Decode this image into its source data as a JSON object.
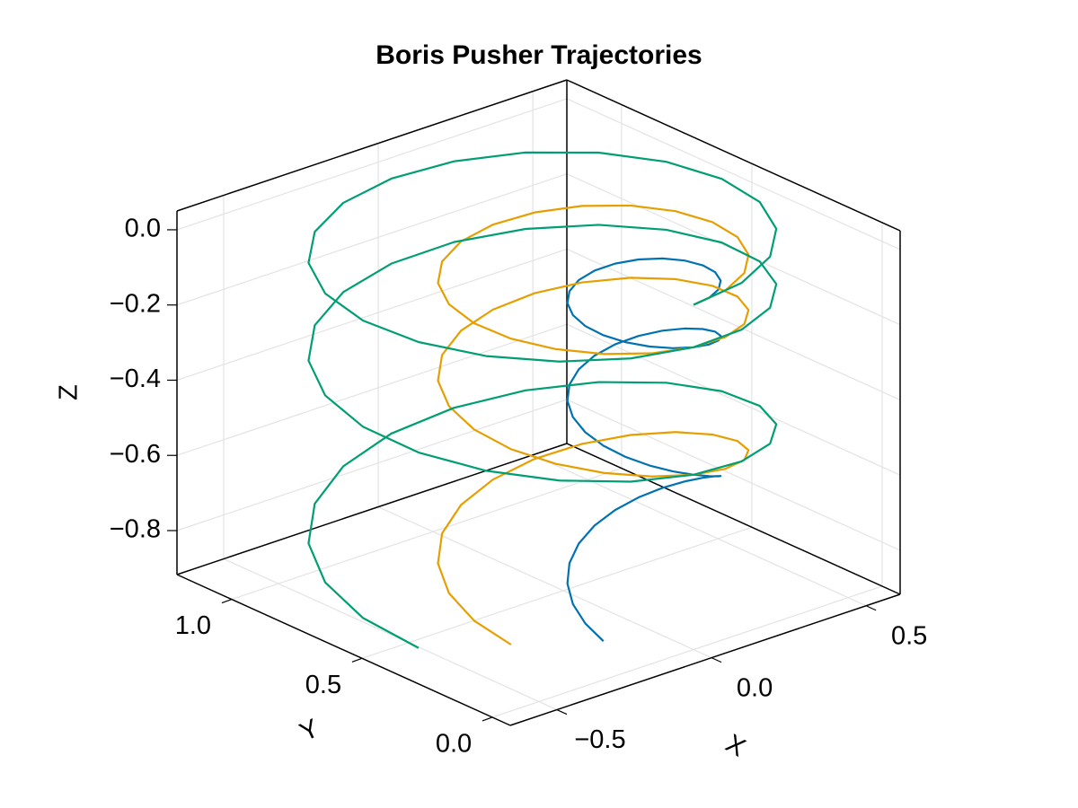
{
  "chart_data": {
    "type": "line3d",
    "title": "Boris Pusher Trajectories",
    "xlabel": "X",
    "ylabel": "Y",
    "zlabel": "Z",
    "xlim": [
      -0.651,
      0.61
    ],
    "ylim": [
      -0.069,
      1.21
    ],
    "zlim": [
      -0.917,
      0.05
    ],
    "xticks": [
      {
        "value": -0.5,
        "label": "−0.5"
      },
      {
        "value": 0,
        "label": "0.0"
      },
      0.5
    ],
    "yticks": [
      {
        "value": 0,
        "label": "0.0"
      },
      0.5,
      {
        "value": 1,
        "label": "1.0"
      }
    ],
    "zticks": [
      {
        "value": -0.8,
        "label": "−0.8"
      },
      {
        "value": -0.6,
        "label": "−0.6"
      },
      {
        "value": -0.4,
        "label": "−0.4"
      },
      {
        "value": -0.2,
        "label": "−0.2"
      },
      {
        "value": 0,
        "label": "0.0"
      }
    ],
    "grid": true,
    "series": [
      {
        "color": "#0072b2",
        "x": [
          0,
          0.0587,
          0.1117,
          0.1537,
          0.1807,
          0.19,
          0.1807,
          0.1537,
          0.1117,
          0.0587,
          0,
          -0.0587,
          -0.1117,
          -0.1537,
          -0.1807,
          -0.19,
          -0.1807,
          -0.1537,
          -0.1117,
          -0.0587,
          0,
          0.0587,
          0.1117,
          0.1537,
          0.1807,
          0.19,
          0.1807,
          0.1537,
          0.1117,
          0.0587,
          0,
          -0.0587,
          -0.1117,
          -0.1537,
          -0.1807,
          -0.19,
          -0.1807,
          -0.1537,
          -0.1117,
          -0.0587,
          0,
          0.0587,
          0.1117,
          0.1537,
          0.1807,
          0.19,
          0.1807,
          0.1537,
          0.1117,
          0.0587,
          0,
          -0.0587,
          -0.1117,
          -0.1537,
          -0.1807,
          -0.19,
          -0.1807
        ],
        "y": [
          0,
          0.0093,
          0.0363,
          0.0783,
          0.1313,
          0.19,
          0.2487,
          0.3017,
          0.3437,
          0.3707,
          0.38,
          0.3707,
          0.3437,
          0.3017,
          0.2487,
          0.19,
          0.1313,
          0.0783,
          0.0363,
          0.0093,
          0,
          0.0093,
          0.0363,
          0.0783,
          0.1313,
          0.19,
          0.2487,
          0.3017,
          0.3437,
          0.3707,
          0.38,
          0.3707,
          0.3437,
          0.3017,
          0.2487,
          0.19,
          0.1313,
          0.0783,
          0.0363,
          0.0093,
          0,
          0.0093,
          0.0363,
          0.0783,
          0.1313,
          0.19,
          0.2487,
          0.3017,
          0.3437,
          0.3707,
          0.38,
          0.3707,
          0.3437,
          0.3017,
          0.2487,
          0.19,
          0.1313
        ],
        "z": [
          0,
          -0.0003,
          -0.0011,
          -0.0025,
          -0.0045,
          -0.0071,
          -0.0102,
          -0.0138,
          -0.0181,
          -0.0229,
          -0.0283,
          -0.0342,
          -0.0407,
          -0.0477,
          -0.0554,
          -0.0636,
          -0.0723,
          -0.0816,
          -0.0915,
          -0.102,
          -0.113,
          -0.1246,
          -0.1367,
          -0.1494,
          -0.1627,
          -0.1766,
          -0.191,
          -0.2059,
          -0.2215,
          -0.2376,
          -0.2543,
          -0.2715,
          -0.2893,
          -0.3076,
          -0.3266,
          -0.3461,
          -0.3661,
          -0.3867,
          -0.4079,
          -0.4297,
          -0.452,
          -0.4749,
          -0.4983,
          -0.5223,
          -0.5469,
          -0.5721,
          -0.5978,
          -0.624,
          -0.6509,
          -0.6783,
          -0.7063,
          -0.7348,
          -0.7639,
          -0.7935,
          -0.8238,
          -0.8546,
          -0.8859
        ]
      },
      {
        "color": "#e69f00",
        "x": [
          0,
          0.119,
          0.2263,
          0.3115,
          0.3662,
          0.385,
          0.3662,
          0.3115,
          0.2263,
          0.119,
          0,
          -0.119,
          -0.2263,
          -0.3115,
          -0.3662,
          -0.385,
          -0.3662,
          -0.3115,
          -0.2263,
          -0.119,
          0,
          0.119,
          0.2263,
          0.3115,
          0.3662,
          0.385,
          0.3662,
          0.3115,
          0.2263,
          0.119,
          0,
          -0.119,
          -0.2263,
          -0.3115,
          -0.3662,
          -0.385,
          -0.3662,
          -0.3115,
          -0.2263,
          -0.119,
          0,
          0.119,
          0.2263,
          0.3115,
          0.3662,
          0.385,
          0.3662,
          0.3115,
          0.2263,
          0.119,
          0,
          -0.119,
          -0.2263,
          -0.3115,
          -0.3662,
          -0.385,
          -0.3662
        ],
        "y": [
          0,
          0.0188,
          0.0735,
          0.1587,
          0.266,
          0.385,
          0.504,
          0.6113,
          0.6965,
          0.7512,
          0.77,
          0.7512,
          0.6965,
          0.6113,
          0.504,
          0.385,
          0.266,
          0.1587,
          0.0735,
          0.0188,
          0,
          0.0188,
          0.0735,
          0.1587,
          0.266,
          0.385,
          0.504,
          0.6113,
          0.6965,
          0.7512,
          0.77,
          0.7512,
          0.6965,
          0.6113,
          0.504,
          0.385,
          0.266,
          0.1587,
          0.0735,
          0.0188,
          0,
          0.0188,
          0.0735,
          0.1587,
          0.266,
          0.385,
          0.504,
          0.6113,
          0.6965,
          0.7512,
          0.77,
          0.7512,
          0.6965,
          0.6113,
          0.504,
          0.385,
          0.266
        ],
        "z": [
          0,
          -0.0003,
          -0.0011,
          -0.0025,
          -0.0045,
          -0.0071,
          -0.0102,
          -0.0138,
          -0.0181,
          -0.0229,
          -0.0283,
          -0.0342,
          -0.0407,
          -0.0477,
          -0.0554,
          -0.0636,
          -0.0723,
          -0.0816,
          -0.0915,
          -0.102,
          -0.113,
          -0.1246,
          -0.1367,
          -0.1494,
          -0.1627,
          -0.1766,
          -0.191,
          -0.2059,
          -0.2215,
          -0.2376,
          -0.2543,
          -0.2715,
          -0.2893,
          -0.3076,
          -0.3266,
          -0.3461,
          -0.3661,
          -0.3867,
          -0.4079,
          -0.4297,
          -0.452,
          -0.4749,
          -0.4983,
          -0.5223,
          -0.5469,
          -0.5721,
          -0.5978,
          -0.624,
          -0.6509,
          -0.6783,
          -0.7063,
          -0.7348,
          -0.7639,
          -0.7935,
          -0.8238,
          -0.8546,
          -0.8859
        ]
      },
      {
        "color": "#009e73",
        "x": [
          0,
          0.1792,
          0.3409,
          0.4692,
          0.5516,
          0.58,
          0.5516,
          0.4692,
          0.3409,
          0.1792,
          0,
          -0.1792,
          -0.3409,
          -0.4692,
          -0.5516,
          -0.58,
          -0.5516,
          -0.4692,
          -0.3409,
          -0.1792,
          0,
          0.1792,
          0.3409,
          0.4692,
          0.5516,
          0.58,
          0.5516,
          0.4692,
          0.3409,
          0.1792,
          0,
          -0.1792,
          -0.3409,
          -0.4692,
          -0.5516,
          -0.58,
          -0.5516,
          -0.4692,
          -0.3409,
          -0.1792,
          0,
          0.1792,
          0.3409,
          0.4692,
          0.5516,
          0.58,
          0.5516,
          0.4692,
          0.3409,
          0.1792,
          0,
          -0.1792,
          -0.3409,
          -0.4692,
          -0.5516,
          -0.58,
          -0.5516
        ],
        "y": [
          0,
          0.0284,
          0.1108,
          0.2391,
          0.4008,
          0.58,
          0.7592,
          0.9209,
          1.0492,
          1.1316,
          1.16,
          1.1316,
          1.0492,
          0.9209,
          0.7592,
          0.58,
          0.4008,
          0.2391,
          0.1108,
          0.0284,
          0,
          0.0284,
          0.1108,
          0.2391,
          0.4008,
          0.58,
          0.7592,
          0.9209,
          1.0492,
          1.1316,
          1.16,
          1.1316,
          1.0492,
          0.9209,
          0.7592,
          0.58,
          0.4008,
          0.2391,
          0.1108,
          0.0284,
          0,
          0.0284,
          0.1108,
          0.2391,
          0.4008,
          0.58,
          0.7592,
          0.9209,
          1.0492,
          1.1316,
          1.16,
          1.1316,
          1.0492,
          0.9209,
          0.7592,
          0.58,
          0.4008
        ],
        "z": [
          0,
          -0.0003,
          -0.0011,
          -0.0025,
          -0.0045,
          -0.0071,
          -0.0102,
          -0.0138,
          -0.0181,
          -0.0229,
          -0.0283,
          -0.0342,
          -0.0407,
          -0.0477,
          -0.0554,
          -0.0636,
          -0.0723,
          -0.0816,
          -0.0915,
          -0.102,
          -0.113,
          -0.1246,
          -0.1367,
          -0.1494,
          -0.1627,
          -0.1766,
          -0.191,
          -0.2059,
          -0.2215,
          -0.2376,
          -0.2543,
          -0.2715,
          -0.2893,
          -0.3076,
          -0.3266,
          -0.3461,
          -0.3661,
          -0.3867,
          -0.4079,
          -0.4297,
          -0.452,
          -0.4749,
          -0.4983,
          -0.5223,
          -0.5469,
          -0.5721,
          -0.5978,
          -0.624,
          -0.6509,
          -0.6783,
          -0.7063,
          -0.7348,
          -0.7639,
          -0.7935,
          -0.8238,
          -0.8546,
          -0.8859
        ]
      }
    ]
  }
}
